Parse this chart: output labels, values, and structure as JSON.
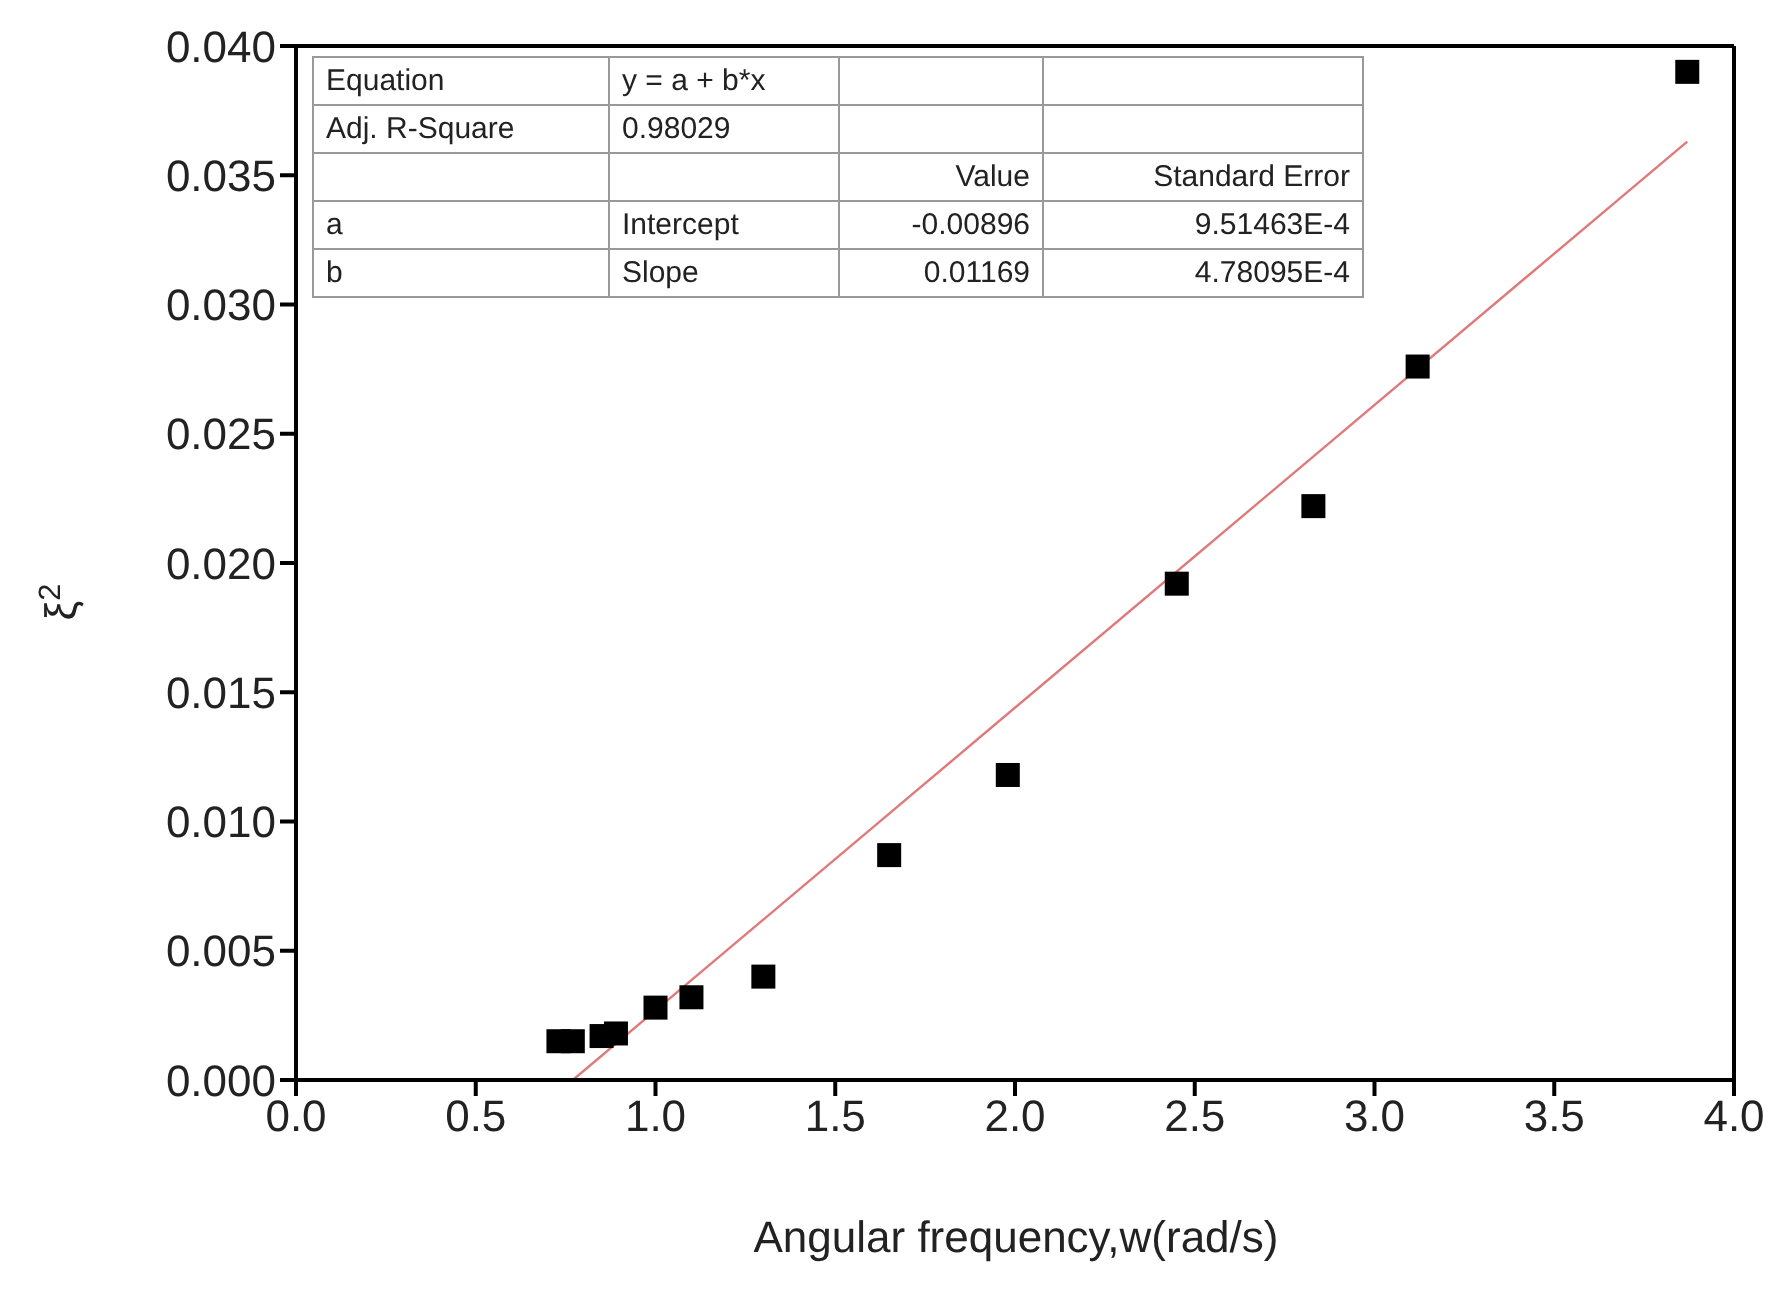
{
  "chart_data": {
    "type": "scatter",
    "xlabel": "Angular frequency,w(rad/s)",
    "ylabel": "ξ$^{2}$",
    "xlim": [
      0,
      4
    ],
    "xticks": [
      {
        "value": 0,
        "label": "0.0"
      },
      0.5,
      {
        "value": 1,
        "label": "1.0"
      },
      1.5,
      {
        "value": 2,
        "label": "2.0"
      },
      2.5,
      {
        "value": 3,
        "label": "3.0"
      },
      3.5,
      {
        "value": 4,
        "label": "4.0"
      }
    ],
    "ylim": [
      0,
      0.04
    ],
    "yticks": [
      {
        "value": 0,
        "label": "0.000"
      },
      0.005,
      {
        "value": 0.01,
        "label": "0.010"
      },
      0.015,
      {
        "value": 0.02,
        "label": "0.020"
      },
      0.025,
      {
        "value": 0.03,
        "label": "0.030"
      },
      0.035,
      {
        "value": 0.04,
        "label": "0.040"
      }
    ],
    "series": [
      {
        "color": "#000000",
        "marker": "square",
        "x": [
          0.73,
          0.77,
          0.85,
          0.89,
          1.0,
          1.1,
          1.3,
          1.65,
          1.98,
          2.45,
          2.83,
          3.12,
          3.87
        ],
        "values": [
          0.0015,
          0.0015,
          0.0017,
          0.0018,
          0.0028,
          0.0032,
          0.004,
          0.0087,
          0.0118,
          0.0192,
          0.0222,
          0.0276,
          0.039
        ]
      },
      {
        "type": "line",
        "color": "#e07a7a",
        "marker": "none",
        "x": [
          0.77,
          3.87
        ],
        "values": [
          0.0,
          0.0363
        ]
      }
    ],
    "annotations": [
      "Equation",
      "y = a + b*x",
      "Adj. R-Square",
      "0.98029",
      "Value",
      "Standard Error",
      "a",
      "Intercept",
      "-0.00896",
      "9.51463E-4",
      "b",
      "Slope",
      "0.01169",
      "4.78095E-4"
    ]
  }
}
